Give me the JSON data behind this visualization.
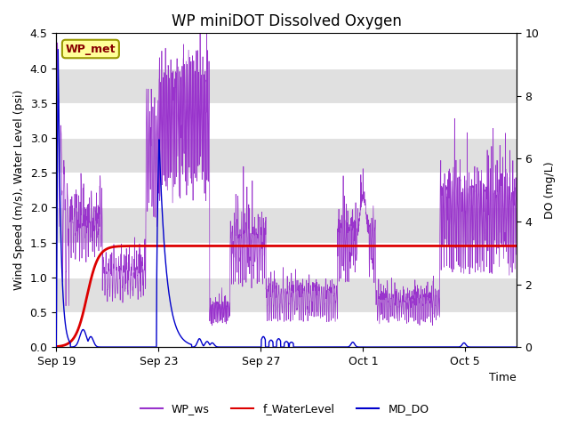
{
  "title": "WP miniDOT Dissolved Oxygen",
  "xlabel": "Time",
  "ylabel_left": "Wind Speed (m/s), Water Level (psi)",
  "ylabel_right": "DO (mg/L)",
  "ylim_left": [
    0.0,
    4.5
  ],
  "ylim_right": [
    0.0,
    10.0
  ],
  "date_ticks_labels": [
    "Sep 19",
    "Sep 23",
    "Sep 27",
    "Oct 1",
    "Oct 5"
  ],
  "date_ticks_offsets": [
    0,
    4,
    8,
    12,
    16
  ],
  "xlim": [
    0,
    18
  ],
  "wp_ws_color": "#9933cc",
  "f_water_color": "#dd0000",
  "md_do_color": "#0000cc",
  "background_bands": [
    "#e8e8e8",
    "#d8d8d8"
  ],
  "band_edges": [
    0.0,
    0.5,
    1.0,
    1.5,
    2.0,
    2.5,
    3.0,
    3.5,
    4.0,
    4.5
  ],
  "grid_color": "#ffffff",
  "legend_box_facecolor": "#ffff99",
  "legend_box_edgecolor": "#999900",
  "legend_text": "WP_met",
  "legend_text_color": "#880000",
  "legend_fontsize": 9,
  "title_fontsize": 12,
  "label_fontsize": 9,
  "tick_fontsize": 9
}
